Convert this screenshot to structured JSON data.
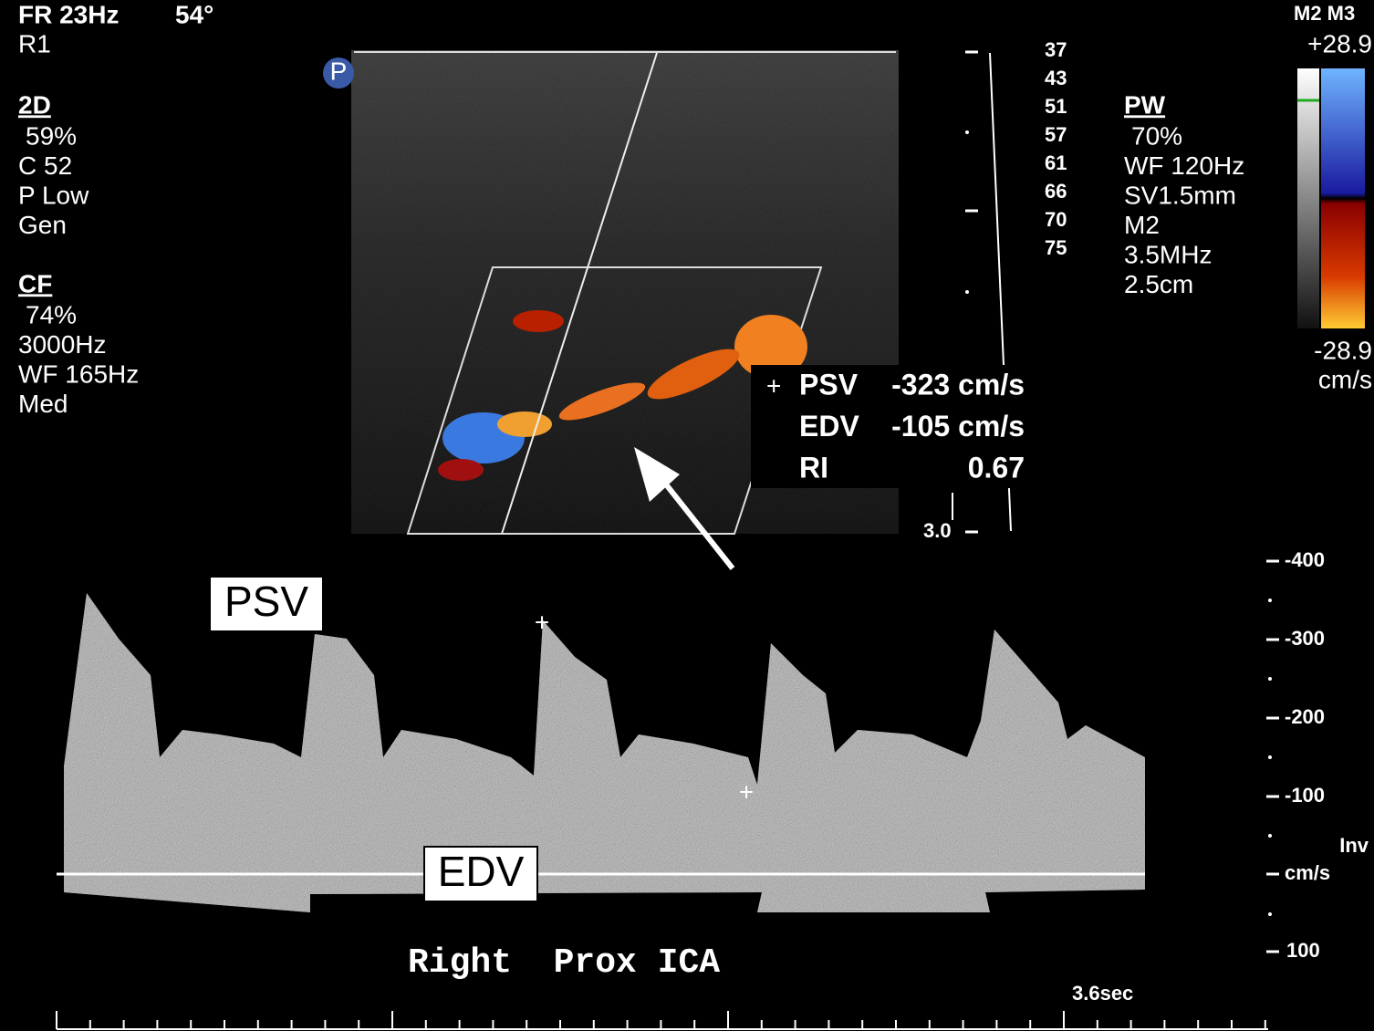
{
  "header": {
    "frame_rate": "FR 23Hz",
    "angle": "54°",
    "preset": "R1"
  },
  "left_panel": {
    "two_d": {
      "title": "2D",
      "lines": [
        "59%",
        "C 52",
        "P Low",
        "Gen"
      ]
    },
    "cf": {
      "title": "CF",
      "lines": [
        "74%",
        "3000Hz",
        "WF 165Hz",
        "Med"
      ]
    }
  },
  "pw_panel": {
    "title": "PW",
    "lines": [
      "70%",
      "WF 120Hz",
      "SV1.5mm",
      "M2",
      "3.5MHz",
      "2.5cm"
    ]
  },
  "color_bar": {
    "modes": "M2 M3",
    "max": "+28.9",
    "min": "-28.9",
    "unit": "cm/s"
  },
  "probe_marker": "P",
  "depth_labels": [
    "37",
    "43",
    "51",
    "57",
    "61",
    "66",
    "70",
    "75"
  ],
  "depth_end": "3.0",
  "measurements": [
    {
      "label": "PSV",
      "value": "-323 cm/s"
    },
    {
      "label": "EDV",
      "value": "-105 cm/s"
    },
    {
      "label": "RI",
      "value": "0.67"
    }
  ],
  "spectral_scale": {
    "labels": [
      "-400",
      "-300",
      "-200",
      "-100"
    ],
    "invert": "Inv",
    "unit": "cm/s",
    "bottom": "100"
  },
  "annotations": {
    "psv": "PSV",
    "edv": "EDV"
  },
  "caption": "Right  Prox ICA",
  "sweep": "3.6sec"
}
